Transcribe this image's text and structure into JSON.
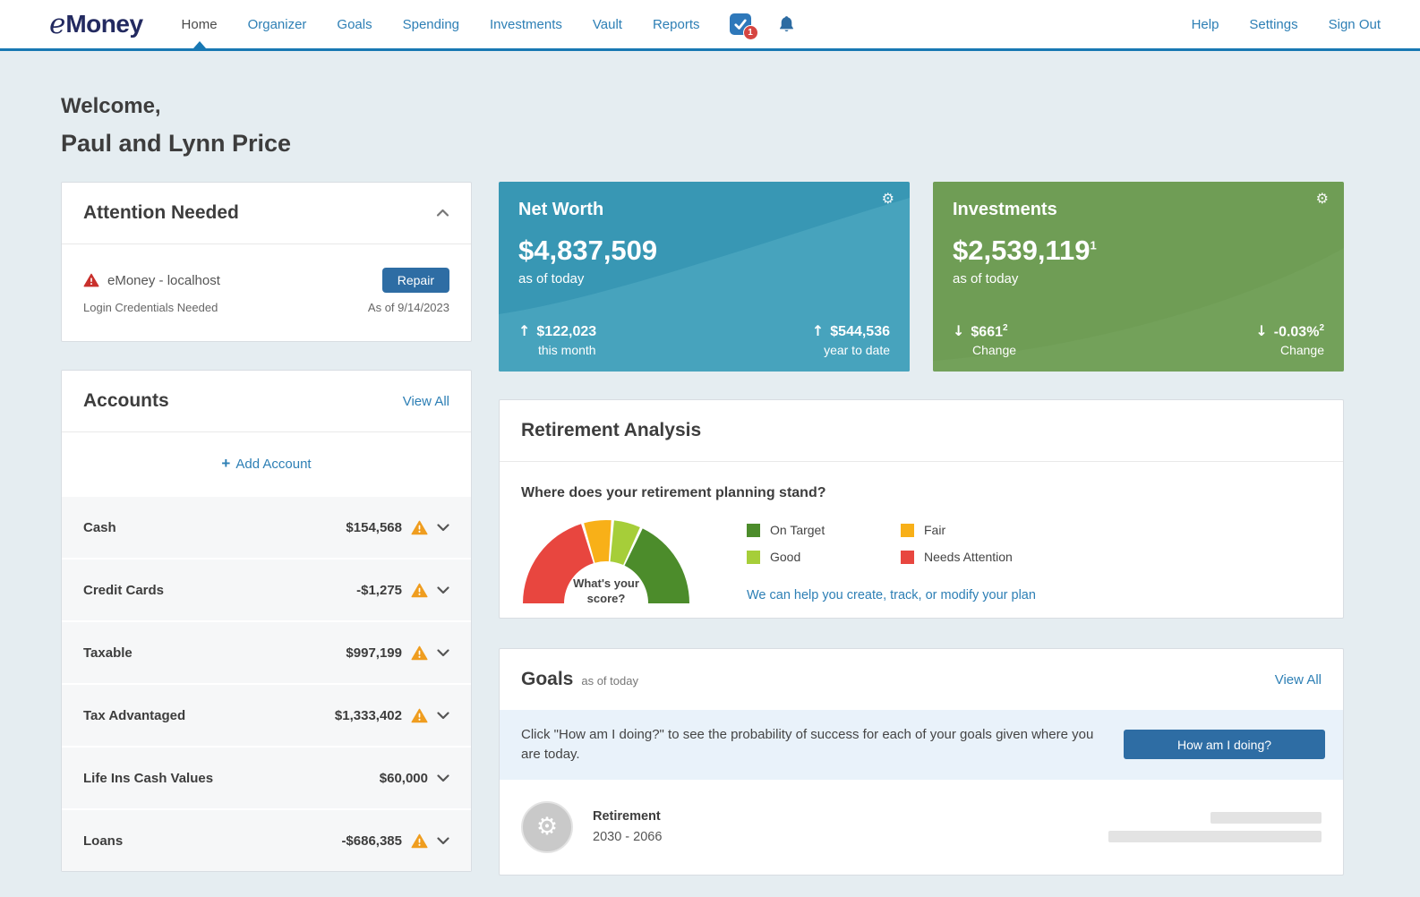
{
  "header": {
    "logo": {
      "e": "e",
      "rest": "Money"
    },
    "nav": [
      {
        "label": "Home",
        "active": true
      },
      {
        "label": "Organizer",
        "active": false
      },
      {
        "label": "Goals",
        "active": false
      },
      {
        "label": "Spending",
        "active": false
      },
      {
        "label": "Investments",
        "active": false
      },
      {
        "label": "Vault",
        "active": false
      },
      {
        "label": "Reports",
        "active": false
      }
    ],
    "tasks_badge": "1",
    "right_nav": [
      "Help",
      "Settings",
      "Sign Out"
    ]
  },
  "welcome": {
    "line1": "Welcome,",
    "line2": "Paul and Lynn Price"
  },
  "attention": {
    "title": "Attention Needed",
    "item": {
      "name": "eMoney - localhost",
      "subtitle": "Login Credentials Needed",
      "action": "Repair",
      "as_of": "As of 9/14/2023"
    }
  },
  "accounts": {
    "title": "Accounts",
    "view_all": "View All",
    "add_account": "Add Account",
    "rows": [
      {
        "label": "Cash",
        "value": "$154,568",
        "warning": true
      },
      {
        "label": "Credit Cards",
        "value": "-$1,275",
        "warning": true
      },
      {
        "label": "Taxable",
        "value": "$997,199",
        "warning": true
      },
      {
        "label": "Tax Advantaged",
        "value": "$1,333,402",
        "warning": true
      },
      {
        "label": "Life Ins Cash Values",
        "value": "$60,000",
        "warning": false
      },
      {
        "label": "Loans",
        "value": "-$686,385",
        "warning": true
      }
    ]
  },
  "net_worth": {
    "title": "Net Worth",
    "value": "$4,837,509",
    "as_of": "as of today",
    "stats": [
      {
        "arrow": "↑",
        "value": "$122,023",
        "sup": "",
        "label": "this month"
      },
      {
        "arrow": "↑",
        "value": "$544,536",
        "sup": "",
        "label": "year to date"
      }
    ]
  },
  "investments": {
    "title": "Investments",
    "value": "$2,539,119",
    "value_sup": "1",
    "as_of": "as of today",
    "stats": [
      {
        "arrow": "↓",
        "value": "$661",
        "sup": "2",
        "label": "Change"
      },
      {
        "arrow": "↓",
        "value": "-0.03%",
        "sup": "2",
        "label": "Change"
      }
    ]
  },
  "retirement": {
    "title": "Retirement Analysis",
    "question": "Where does your retirement planning stand?",
    "link": "We can help you create, track, or modify your plan"
  },
  "goals": {
    "title": "Goals",
    "as_of": "as of today",
    "view_all": "View All",
    "banner_text": "Click \"How am I doing?\" to see the probability of success for each of your goals given where you are today.",
    "button": "How am I doing?",
    "items": [
      {
        "name": "Retirement",
        "years": "2030 - 2066"
      }
    ]
  },
  "chart_data": {
    "type": "pie",
    "variant": "half-donut-gauge",
    "title": "Where does your retirement planning stand?",
    "center_label": "What's your score?",
    "segments": [
      {
        "name": "Needs Attention",
        "color": "#e8463f",
        "start_deg": 180,
        "end_deg": 107.5
      },
      {
        "name": "Fair",
        "color": "#f8b018",
        "start_deg": 105.5,
        "end_deg": 86.5
      },
      {
        "name": "Good",
        "color": "#a6ce39",
        "start_deg": 84.5,
        "end_deg": 66
      },
      {
        "name": "On Target",
        "color": "#4c8c2b",
        "start_deg": 64,
        "end_deg": 0
      }
    ],
    "legend": [
      {
        "label": "On Target",
        "color": "#4c8c2b"
      },
      {
        "label": "Fair",
        "color": "#f8b018"
      },
      {
        "label": "Good",
        "color": "#a6ce39"
      },
      {
        "label": "Needs Attention",
        "color": "#e8463f"
      }
    ],
    "legend_position": "right"
  },
  "icons": {
    "gear": "⚙",
    "plus": "+"
  },
  "colors": {
    "accent_blue": "#2d7fb5",
    "header_border": "#1878b3",
    "logo_navy": "#232a60",
    "net_worth_card": "#3897b4",
    "net_worth_card_light": "#47a3bd",
    "investments_card": "#6f9d55",
    "investments_card_light": "#77a45e",
    "warning_orange": "#ef9d1f",
    "alert_red": "#c9302c",
    "button_blue": "#2e6da4",
    "badge_red": "#d64541",
    "banner_blue": "#e9f2fa"
  }
}
